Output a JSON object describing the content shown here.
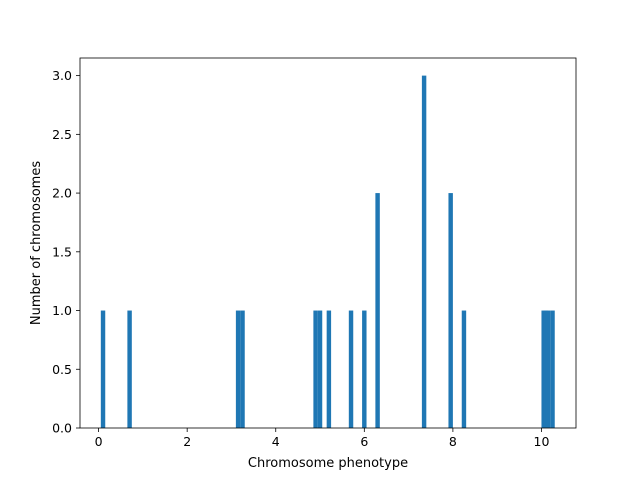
{
  "chart_data": {
    "type": "bar",
    "title": "",
    "xlabel": "Chromosome phenotype",
    "ylabel": "Number of chromosomes",
    "xlim": [
      -0.42,
      10.78
    ],
    "ylim": [
      0,
      3.15
    ],
    "bar_width": 0.1,
    "xticks": [
      0,
      2,
      4,
      6,
      8,
      10
    ],
    "xtick_labels": [
      "0",
      "2",
      "4",
      "6",
      "8",
      "10"
    ],
    "yticks": [
      0.0,
      0.5,
      1.0,
      1.5,
      2.0,
      2.5,
      3.0
    ],
    "ytick_labels": [
      "0.0",
      "0.5",
      "1.0",
      "1.5",
      "2.0",
      "2.5",
      "3.0"
    ],
    "grid": false,
    "legend": "none",
    "series": [
      {
        "color": "#1f77b4",
        "x": [
          0.1,
          0.7,
          3.15,
          3.25,
          4.9,
          5.0,
          5.2,
          5.7,
          6.0,
          6.3,
          7.35,
          7.95,
          8.25,
          10.05,
          10.1,
          10.15,
          10.25
        ],
        "values": [
          1,
          1,
          1,
          1,
          1,
          1,
          1,
          1,
          1,
          2,
          3,
          2,
          1,
          1,
          1,
          1,
          1
        ]
      }
    ]
  }
}
